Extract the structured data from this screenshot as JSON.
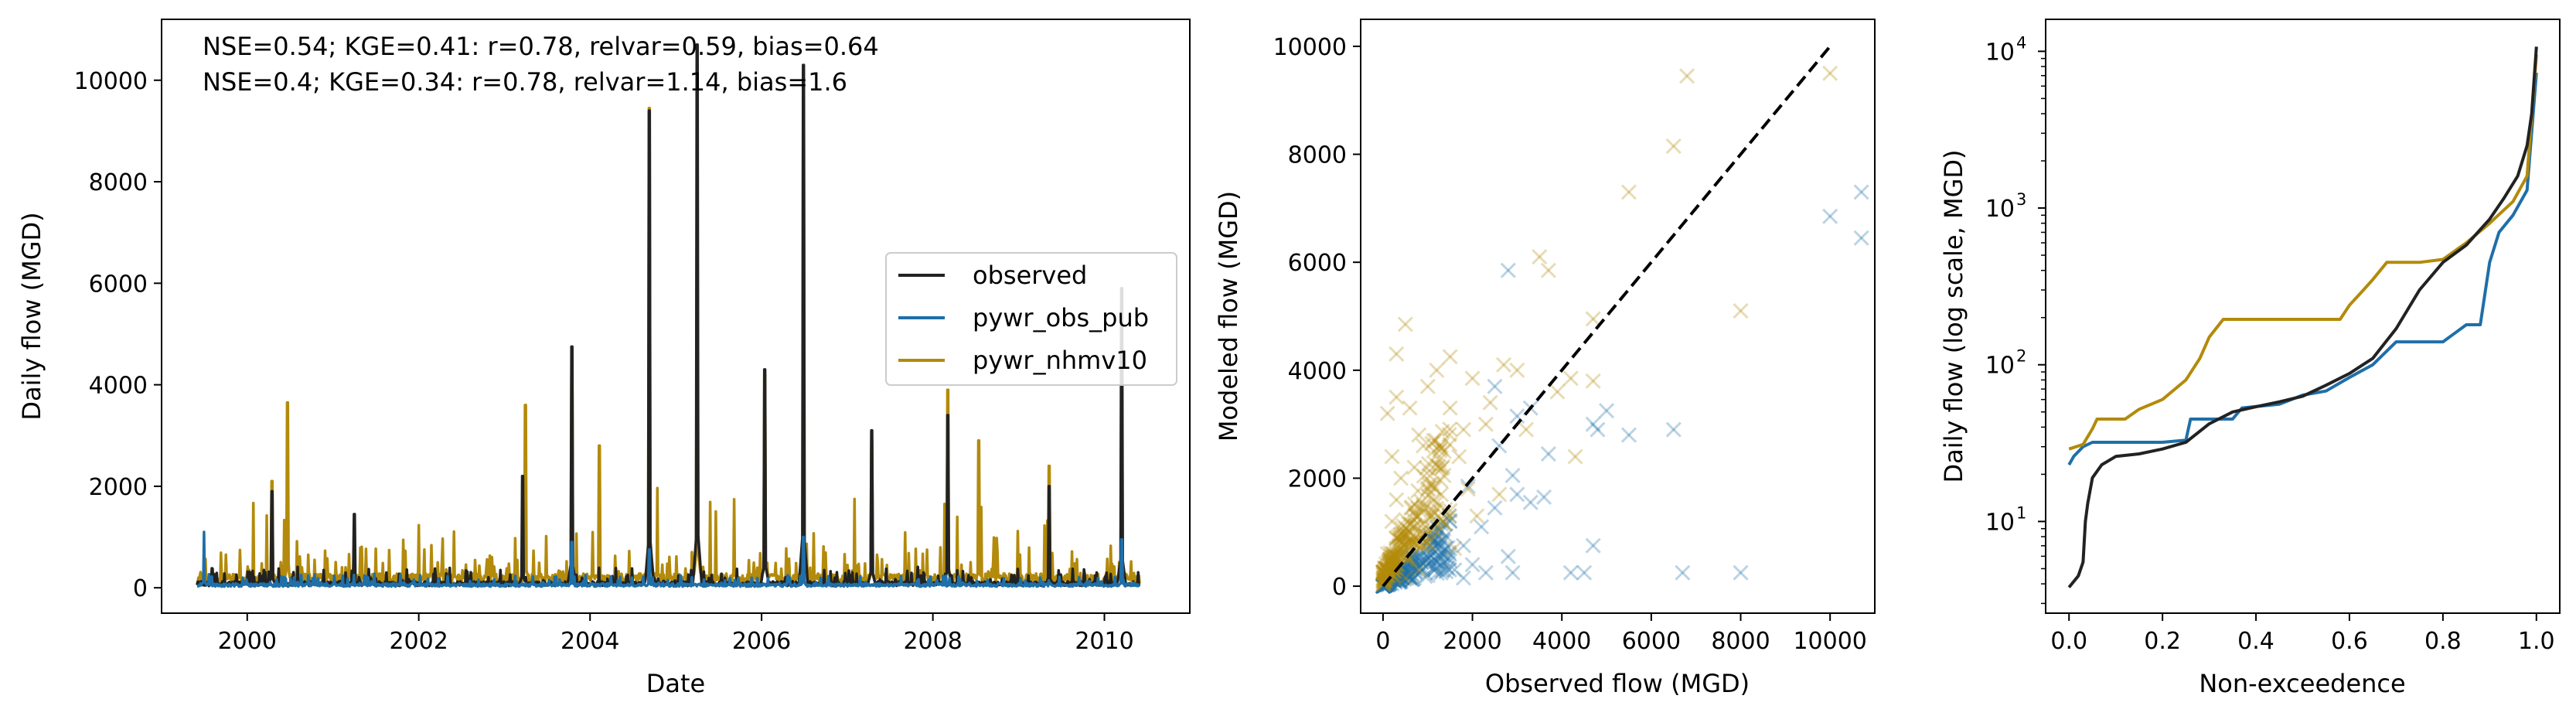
{
  "colors": {
    "observed": "#222222",
    "pywr_obs_pub": "#1f6fa8",
    "pywr_nhmv10": "#b38a0b",
    "diagonal": "#000000"
  },
  "chart_data": [
    {
      "type": "line",
      "xlabel": "Date",
      "ylabel": "Daily flow (MGD)",
      "xlim": [
        "1999-01-01",
        "2010-12-31"
      ],
      "ylim": [
        -500,
        11200
      ],
      "xticks": [
        "2000",
        "2002",
        "2004",
        "2006",
        "2008",
        "2010"
      ],
      "yticks": [
        0,
        2000,
        4000,
        6000,
        8000,
        10000
      ],
      "grid": false,
      "legend_position": "center-right",
      "stats_text": [
        "NSE=0.54; KGE=0.41: r=0.78, relvar=0.59, bias=0.64",
        "NSE=0.4; KGE=0.34: r=0.78, relvar=1.14, bias=1.6"
      ],
      "series": [
        {
          "name": "observed",
          "peaks": [
            [
              "2000-04-15",
              1900
            ],
            [
              "2001-04-01",
              1450
            ],
            [
              "2003-03-20",
              2200
            ],
            [
              "2003-10-15",
              4750
            ],
            [
              "2004-09-10",
              9400
            ],
            [
              "2005-04-02",
              10700
            ],
            [
              "2006-01-15",
              4300
            ],
            [
              "2006-06-28",
              10300
            ],
            [
              "2007-04-15",
              3100
            ],
            [
              "2008-03-05",
              3400
            ],
            [
              "2009-05-10",
              2000
            ],
            [
              "2010-03-15",
              5900
            ]
          ]
        },
        {
          "name": "pywr_obs_pub",
          "peaks": [
            [
              "1999-07-01",
              1100
            ],
            [
              "2003-10-15",
              900
            ],
            [
              "2004-09-10",
              750
            ],
            [
              "2006-06-28",
              1000
            ],
            [
              "2010-03-15",
              950
            ]
          ]
        },
        {
          "name": "pywr_nhmv10",
          "peaks": [
            [
              "2000-04-15",
              2100
            ],
            [
              "2000-06-20",
              3650
            ],
            [
              "2003-04-01",
              3600
            ],
            [
              "2003-10-15",
              4200
            ],
            [
              "2004-02-10",
              2800
            ],
            [
              "2004-09-10",
              9450
            ],
            [
              "2005-04-02",
              7300
            ],
            [
              "2006-01-15",
              4200
            ],
            [
              "2006-06-28",
              9500
            ],
            [
              "2007-04-15",
              2900
            ],
            [
              "2008-03-05",
              3900
            ],
            [
              "2008-07-15",
              2900
            ],
            [
              "2009-05-10",
              2400
            ],
            [
              "2010-03-15",
              4200
            ]
          ]
        }
      ]
    },
    {
      "type": "scatter",
      "xlabel": "Observed flow (MGD)",
      "ylabel": "Modeled flow (MGD)",
      "xlim": [
        -500,
        11000
      ],
      "ylim": [
        -500,
        10500
      ],
      "xticks": [
        0,
        2000,
        4000,
        6000,
        8000,
        10000
      ],
      "yticks": [
        0,
        2000,
        4000,
        6000,
        8000,
        10000
      ],
      "grid": false,
      "diagonal": [
        [
          0,
          0
        ],
        [
          10000,
          10000
        ]
      ],
      "series": [
        {
          "name": "pywr_obs_pub",
          "points": [
            [
              10000,
              6850
            ],
            [
              10700,
              7300
            ],
            [
              10700,
              6450
            ],
            [
              6500,
              2900
            ],
            [
              6700,
              250
            ],
            [
              8000,
              250
            ],
            [
              4700,
              750
            ],
            [
              4500,
              250
            ],
            [
              4200,
              250
            ],
            [
              5000,
              3250
            ],
            [
              4800,
              2900
            ],
            [
              5500,
              2800
            ],
            [
              4700,
              3000
            ],
            [
              3700,
              2450
            ],
            [
              2800,
              5850
            ],
            [
              2500,
              3700
            ],
            [
              3300,
              3300
            ],
            [
              3000,
              3150
            ],
            [
              2600,
              2600
            ],
            [
              3000,
              1700
            ],
            [
              3300,
              1550
            ],
            [
              2800,
              550
            ],
            [
              2900,
              250
            ],
            [
              2300,
              250
            ],
            [
              2000,
              400
            ],
            [
              1800,
              750
            ],
            [
              2500,
              1450
            ],
            [
              1900,
              1850
            ],
            [
              1500,
              1200
            ],
            [
              1400,
              700
            ],
            [
              1200,
              900
            ],
            [
              1600,
              300
            ],
            [
              1000,
              200
            ],
            [
              800,
              500
            ],
            [
              700,
              150
            ],
            [
              500,
              250
            ],
            [
              2200,
              1100
            ],
            [
              3600,
              1650
            ],
            [
              2900,
              2050
            ],
            [
              1800,
              150
            ]
          ]
        },
        {
          "name": "pywr_nhmv10",
          "points": [
            [
              10000,
              9500
            ],
            [
              6800,
              9450
            ],
            [
              6500,
              8150
            ],
            [
              5500,
              7300
            ],
            [
              3500,
              6100
            ],
            [
              3700,
              5850
            ],
            [
              8000,
              5100
            ],
            [
              4700,
              4950
            ],
            [
              500,
              4850
            ],
            [
              300,
              4300
            ],
            [
              1500,
              4250
            ],
            [
              2700,
              4100
            ],
            [
              1200,
              4000
            ],
            [
              2000,
              3850
            ],
            [
              1000,
              3700
            ],
            [
              4200,
              3850
            ],
            [
              4700,
              3800
            ],
            [
              3900,
              3600
            ],
            [
              300,
              3500
            ],
            [
              600,
              3300
            ],
            [
              100,
              3200
            ],
            [
              2300,
              3000
            ],
            [
              3200,
              2900
            ],
            [
              800,
              2800
            ],
            [
              1300,
              2600
            ],
            [
              200,
              2400
            ],
            [
              1700,
              2400
            ],
            [
              700,
              2200
            ],
            [
              400,
              2000
            ],
            [
              1100,
              1900
            ],
            [
              1900,
              1800
            ],
            [
              2600,
              1700
            ],
            [
              300,
              1600
            ],
            [
              900,
              1500
            ],
            [
              1500,
              1400
            ],
            [
              2100,
              1300
            ],
            [
              200,
              1200
            ],
            [
              700,
              1100
            ],
            [
              1200,
              1000
            ],
            [
              400,
              900
            ],
            [
              1000,
              800
            ],
            [
              1600,
              700
            ],
            [
              100,
              600
            ],
            [
              600,
              500
            ],
            [
              300,
              400
            ],
            [
              800,
              300
            ],
            [
              100,
              200
            ],
            [
              500,
              150
            ],
            [
              1300,
              1700
            ],
            [
              1800,
              2900
            ],
            [
              2400,
              3400
            ],
            [
              3000,
              4000
            ],
            [
              1500,
              3300
            ],
            [
              900,
              2600
            ],
            [
              4300,
              2400
            ]
          ]
        }
      ]
    },
    {
      "type": "line",
      "xlabel": "Non-exceedence",
      "ylabel": "Daily flow (log scale, MGD)",
      "yscale": "log",
      "xlim": [
        -0.05,
        1.05
      ],
      "ylim": [
        2.6,
        16000
      ],
      "xticks": [
        0.0,
        0.2,
        0.4,
        0.6,
        0.8,
        1.0
      ],
      "yticks": [
        10,
        100,
        1000,
        10000
      ],
      "ytick_labels": [
        "10",
        "10",
        "10",
        "10"
      ],
      "ytick_exponents": [
        "1",
        "2",
        "3",
        "4"
      ],
      "grid": false,
      "series": [
        {
          "name": "observed",
          "points": [
            [
              0.0,
              3.8
            ],
            [
              0.02,
              4.5
            ],
            [
              0.03,
              5.5
            ],
            [
              0.035,
              10
            ],
            [
              0.04,
              13
            ],
            [
              0.05,
              19
            ],
            [
              0.07,
              23
            ],
            [
              0.1,
              26
            ],
            [
              0.15,
              27
            ],
            [
              0.2,
              29
            ],
            [
              0.25,
              32
            ],
            [
              0.3,
              42
            ],
            [
              0.35,
              50
            ],
            [
              0.4,
              54
            ],
            [
              0.45,
              58
            ],
            [
              0.5,
              63
            ],
            [
              0.55,
              74
            ],
            [
              0.6,
              88
            ],
            [
              0.65,
              110
            ],
            [
              0.7,
              170
            ],
            [
              0.75,
              300
            ],
            [
              0.8,
              450
            ],
            [
              0.85,
              580
            ],
            [
              0.9,
              850
            ],
            [
              0.93,
              1150
            ],
            [
              0.96,
              1600
            ],
            [
              0.98,
              2500
            ],
            [
              0.99,
              4000
            ],
            [
              1.0,
              10700
            ]
          ]
        },
        {
          "name": "pywr_obs_pub",
          "points": [
            [
              0.0,
              23
            ],
            [
              0.01,
              26
            ],
            [
              0.03,
              30
            ],
            [
              0.05,
              32
            ],
            [
              0.1,
              32
            ],
            [
              0.2,
              32
            ],
            [
              0.25,
              33
            ],
            [
              0.26,
              45
            ],
            [
              0.35,
              45
            ],
            [
              0.37,
              53
            ],
            [
              0.45,
              56
            ],
            [
              0.5,
              64
            ],
            [
              0.55,
              68
            ],
            [
              0.6,
              83
            ],
            [
              0.65,
              100
            ],
            [
              0.7,
              140
            ],
            [
              0.75,
              140
            ],
            [
              0.8,
              140
            ],
            [
              0.85,
              180
            ],
            [
              0.88,
              180
            ],
            [
              0.9,
              450
            ],
            [
              0.92,
              700
            ],
            [
              0.95,
              900
            ],
            [
              0.98,
              1300
            ],
            [
              1.0,
              7300
            ]
          ]
        },
        {
          "name": "pywr_nhmv10",
          "points": [
            [
              0.0,
              29
            ],
            [
              0.03,
              31
            ],
            [
              0.05,
              39
            ],
            [
              0.06,
              45
            ],
            [
              0.12,
              45
            ],
            [
              0.15,
              52
            ],
            [
              0.2,
              60
            ],
            [
              0.25,
              80
            ],
            [
              0.28,
              110
            ],
            [
              0.3,
              150
            ],
            [
              0.33,
              195
            ],
            [
              0.4,
              195
            ],
            [
              0.5,
              195
            ],
            [
              0.58,
              195
            ],
            [
              0.6,
              240
            ],
            [
              0.63,
              300
            ],
            [
              0.65,
              350
            ],
            [
              0.68,
              450
            ],
            [
              0.75,
              450
            ],
            [
              0.8,
              470
            ],
            [
              0.85,
              600
            ],
            [
              0.9,
              800
            ],
            [
              0.95,
              1100
            ],
            [
              0.98,
              1600
            ],
            [
              1.0,
              9500
            ]
          ]
        }
      ]
    }
  ]
}
